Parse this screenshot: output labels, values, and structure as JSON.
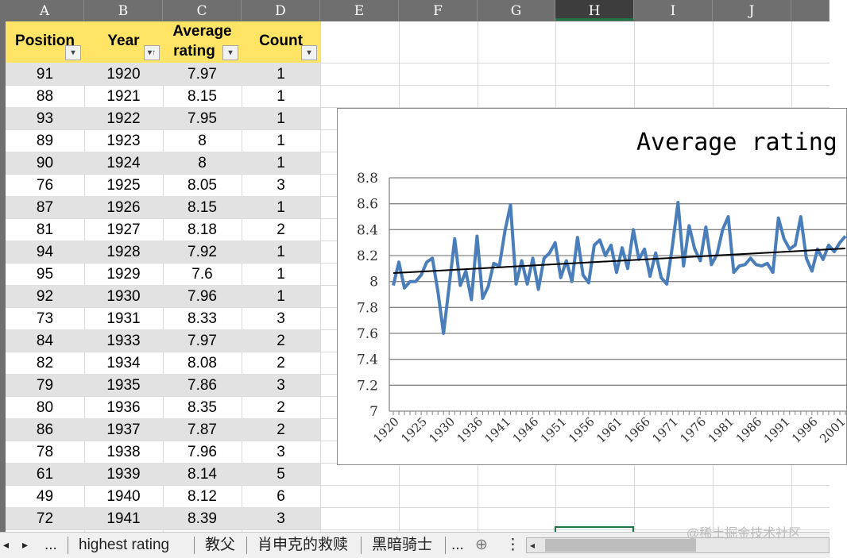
{
  "columns": [
    "A",
    "B",
    "C",
    "D",
    "E",
    "F",
    "G",
    "H",
    "I",
    "J"
  ],
  "active_column": "H",
  "table": {
    "headers": [
      {
        "line1": "Position",
        "line2": ""
      },
      {
        "line1": "Year",
        "line2": ""
      },
      {
        "line1": "Average",
        "line2": "rating"
      },
      {
        "line1": "Count",
        "line2": ""
      }
    ],
    "filter_icons": [
      "▾",
      "▾↑",
      "▾",
      "▾"
    ],
    "rows": [
      [
        "91",
        "1920",
        "7.97",
        "1"
      ],
      [
        "88",
        "1921",
        "8.15",
        "1"
      ],
      [
        "93",
        "1922",
        "7.95",
        "1"
      ],
      [
        "89",
        "1923",
        "8",
        "1"
      ],
      [
        "90",
        "1924",
        "8",
        "1"
      ],
      [
        "76",
        "1925",
        "8.05",
        "3"
      ],
      [
        "87",
        "1926",
        "8.15",
        "1"
      ],
      [
        "81",
        "1927",
        "8.18",
        "2"
      ],
      [
        "94",
        "1928",
        "7.92",
        "1"
      ],
      [
        "95",
        "1929",
        "7.6",
        "1"
      ],
      [
        "92",
        "1930",
        "7.96",
        "1"
      ],
      [
        "73",
        "1931",
        "8.33",
        "3"
      ],
      [
        "84",
        "1933",
        "7.97",
        "2"
      ],
      [
        "82",
        "1934",
        "8.08",
        "2"
      ],
      [
        "79",
        "1935",
        "7.86",
        "3"
      ],
      [
        "80",
        "1936",
        "8.35",
        "2"
      ],
      [
        "86",
        "1937",
        "7.87",
        "2"
      ],
      [
        "78",
        "1938",
        "7.96",
        "3"
      ],
      [
        "61",
        "1939",
        "8.14",
        "5"
      ],
      [
        "49",
        "1940",
        "8.12",
        "6"
      ],
      [
        "72",
        "1941",
        "8.39",
        "3"
      ]
    ]
  },
  "chart_data": {
    "type": "line",
    "title": "Average rating",
    "ylim": [
      7,
      8.8
    ],
    "yticks": [
      "8.8",
      "8.6",
      "8.4",
      "8.2",
      "8",
      "7.8",
      "7.6",
      "7.4",
      "7.2",
      "7"
    ],
    "x_tick_labels": [
      "1920",
      "1925",
      "1930",
      "1936",
      "1941",
      "1946",
      "1951",
      "1956",
      "1961",
      "1966",
      "1971",
      "1976",
      "1981",
      "1986",
      "1991",
      "1996",
      "2001"
    ],
    "series_color": "#4a7ebb",
    "trendline_color": "#000000",
    "grid": true,
    "values": [
      7.97,
      8.15,
      7.95,
      8,
      8,
      8.05,
      8.15,
      8.18,
      7.92,
      7.6,
      7.96,
      8.33,
      7.97,
      8.08,
      7.86,
      8.35,
      7.87,
      7.96,
      8.14,
      8.12,
      8.39,
      8.59,
      7.98,
      8.16,
      7.98,
      8.18,
      7.94,
      8.18,
      8.22,
      8.3,
      8.03,
      8.16,
      8.0,
      8.34,
      8.05,
      7.99,
      8.28,
      8.32,
      8.2,
      8.28,
      8.07,
      8.26,
      8.1,
      8.4,
      8.17,
      8.25,
      8.04,
      8.22,
      8.03,
      7.98,
      8.27,
      8.61,
      8.12,
      8.43,
      8.25,
      8.16,
      8.42,
      8.13,
      8.21,
      8.4,
      8.5,
      8.07,
      8.12,
      8.13,
      8.18,
      8.13,
      8.12,
      8.14,
      8.07,
      8.49,
      8.33,
      8.25,
      8.28,
      8.5,
      8.18,
      8.08,
      8.25,
      8.17,
      8.28,
      8.23,
      8.3,
      8.35
    ],
    "trend": [
      8.065,
      8.255
    ]
  },
  "sheet_tabs": {
    "nav_prev": "◂",
    "nav_next": "▸",
    "more_left": "...",
    "tabs": [
      "highest rating",
      "教父",
      "肖申克的救赎",
      "黑暗骑士"
    ],
    "more_right": "...",
    "add": "⊕",
    "options": "⋮"
  },
  "watermark": "@稀土掘金技术社区"
}
